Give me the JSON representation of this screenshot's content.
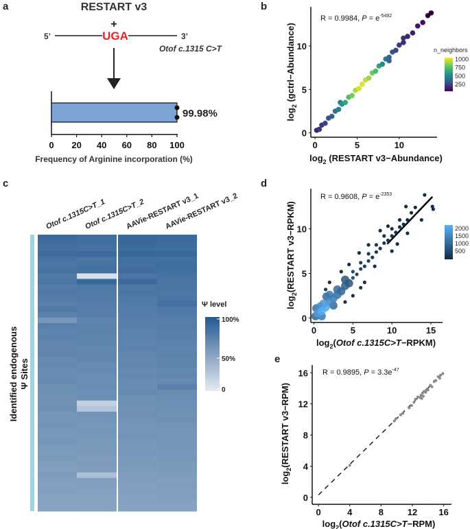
{
  "panel_labels": {
    "a": "a",
    "b": "b",
    "c": "c",
    "d": "d",
    "e": "e"
  },
  "diagram": {
    "title": "RESTART v3",
    "plus": "+",
    "five_prime": "5’",
    "codon": "UGA",
    "three_prime": "3’",
    "mutation": "Otof c.1315 C>T",
    "codon_color": "#e8202a"
  },
  "chart_data": [
    {
      "panel": "a",
      "type": "bar",
      "orientation": "horizontal",
      "values": [
        99.98
      ],
      "replicates": [
        100,
        100
      ],
      "value_label": "99.98%",
      "xlabel": "Frequency of Arginine incorporation (%)",
      "xlim": [
        0,
        100
      ],
      "xticks": [
        "0",
        "20",
        "40",
        "60",
        "80",
        "100"
      ],
      "bar_color": "#7ba3d6"
    },
    {
      "panel": "b",
      "type": "scatter",
      "xlabel": {
        "pre": "log",
        "sub": "2",
        "rest": " (RESTART v3−Abundance)"
      },
      "ylabel": {
        "pre": "log",
        "sub": "2",
        "rest": " (gctrl−Abundance)"
      },
      "annotation": {
        "r": "R = 0.9984, ",
        "p": "P",
        "eq": " = e",
        "exp": "-5492"
      },
      "xlim": [
        -0.5,
        14.5
      ],
      "ylim": [
        -0.5,
        14.5
      ],
      "xticks": [
        "0",
        "5",
        "10"
      ],
      "yticks": [
        "0",
        "5",
        "10"
      ],
      "legend": {
        "title": "n_neighbors",
        "labels": [
          "1000",
          "750",
          "500",
          "250"
        ],
        "colormap": "viridis",
        "range": [
          50,
          1050
        ]
      },
      "points": [
        [
          0.2,
          0.3,
          150
        ],
        [
          0.5,
          0.4,
          200
        ],
        [
          0.8,
          0.9,
          230
        ],
        [
          1.2,
          1.1,
          260
        ],
        [
          1.6,
          1.7,
          300
        ],
        [
          2.0,
          1.9,
          350
        ],
        [
          2.4,
          2.5,
          420
        ],
        [
          2.8,
          2.7,
          480
        ],
        [
          3.0,
          3.5,
          500
        ],
        [
          3.2,
          3.3,
          560
        ],
        [
          3.6,
          3.5,
          640
        ],
        [
          4.0,
          4.1,
          740
        ],
        [
          4.4,
          4.3,
          830
        ],
        [
          4.8,
          4.9,
          920
        ],
        [
          5.2,
          5.1,
          980
        ],
        [
          5.6,
          5.6,
          1000
        ],
        [
          6.0,
          6.1,
          960
        ],
        [
          6.4,
          6.3,
          900
        ],
        [
          6.8,
          6.9,
          820
        ],
        [
          7.2,
          7.1,
          720
        ],
        [
          7.6,
          7.7,
          620
        ],
        [
          8.0,
          7.9,
          520
        ],
        [
          8.4,
          8.5,
          440
        ],
        [
          8.8,
          8.7,
          380
        ],
        [
          8.8,
          8.3,
          380
        ],
        [
          9.2,
          9.3,
          320
        ],
        [
          9.6,
          9.5,
          270
        ],
        [
          10.0,
          10.1,
          230
        ],
        [
          10.5,
          10.4,
          190
        ],
        [
          10.5,
          10.9,
          200
        ],
        [
          11.0,
          11.1,
          160
        ],
        [
          11.6,
          11.5,
          130
        ],
        [
          12.2,
          12.3,
          110
        ],
        [
          12.8,
          12.7,
          90
        ],
        [
          13.4,
          13.5,
          70
        ],
        [
          13.8,
          13.8,
          50
        ]
      ]
    },
    {
      "panel": "c",
      "type": "heatmap",
      "columns": [
        "Otof c.1315C>T_1",
        "Otof c.1315C>T_2",
        "AAVie-RESTART v3_1",
        "AAVie-RESTART v3_2"
      ],
      "ylabel": [
        "Identified endogenous",
        "Ψ Sites"
      ],
      "legend": {
        "title": "Ψ level",
        "labels": [
          "100%",
          "50%",
          "0"
        ]
      },
      "color_low": "#e6eaf2",
      "color_high": "#245990",
      "side_bar_color": "#9fd3de",
      "rows": [
        [
          88,
          86,
          90,
          88
        ],
        [
          86,
          85,
          89,
          87
        ],
        [
          84,
          82,
          87,
          86
        ],
        [
          87,
          88,
          90,
          89
        ],
        [
          82,
          80,
          85,
          84
        ],
        [
          80,
          82,
          84,
          86
        ],
        [
          83,
          84,
          86,
          85
        ],
        [
          78,
          8,
          80,
          82
        ],
        [
          80,
          90,
          88,
          80
        ],
        [
          76,
          78,
          79,
          81
        ],
        [
          78,
          76,
          80,
          79
        ],
        [
          75,
          77,
          78,
          80
        ],
        [
          74,
          75,
          77,
          84
        ],
        [
          77,
          73,
          76,
          78
        ],
        [
          72,
          74,
          75,
          77
        ],
        [
          58,
          70,
          73,
          74
        ],
        [
          73,
          71,
          74,
          76
        ],
        [
          70,
          72,
          71,
          73
        ],
        [
          71,
          69,
          72,
          74
        ],
        [
          69,
          70,
          70,
          72
        ],
        [
          68,
          67,
          71,
          70
        ],
        [
          70,
          68,
          69,
          71
        ],
        [
          66,
          68,
          67,
          69
        ],
        [
          67,
          65,
          68,
          70
        ],
        [
          65,
          66,
          66,
          67
        ],
        [
          64,
          64,
          67,
          68
        ],
        [
          66,
          63,
          65,
          66
        ],
        [
          62,
          65,
          64,
          73
        ],
        [
          63,
          62,
          66,
          65
        ],
        [
          61,
          63,
          62,
          64
        ],
        [
          60,
          18,
          63,
          62
        ],
        [
          62,
          25,
          61,
          63
        ],
        [
          59,
          60,
          62,
          61
        ],
        [
          58,
          59,
          60,
          62
        ],
        [
          60,
          57,
          59,
          60
        ],
        [
          57,
          58,
          58,
          59
        ],
        [
          56,
          57,
          60,
          58
        ],
        [
          58,
          55,
          57,
          59
        ],
        [
          55,
          56,
          56,
          57
        ],
        [
          54,
          55,
          57,
          56
        ],
        [
          56,
          53,
          55,
          57
        ],
        [
          53,
          54,
          56,
          55
        ],
        [
          52,
          53,
          54,
          55
        ],
        [
          54,
          30,
          53,
          54
        ],
        [
          51,
          52,
          53,
          52
        ],
        [
          50,
          51,
          52,
          53
        ],
        [
          52,
          50,
          51,
          51
        ],
        [
          49,
          50,
          50,
          52
        ],
        [
          50,
          48,
          51,
          50
        ],
        [
          48,
          49,
          49,
          50
        ]
      ]
    },
    {
      "panel": "d",
      "type": "scatter",
      "xlabel": {
        "pre": "log",
        "sub": "2",
        "open": "(",
        "italic": "Otof c.1315C>T",
        "rest": "−RPKM)"
      },
      "ylabel": {
        "pre": "log",
        "sub": "2",
        "rest": "(RESTART v3−RPKM)"
      },
      "annotation": {
        "r": "R = 0.9608, ",
        "p": "P",
        "eq": " = e",
        "exp": "-2353"
      },
      "xlim": [
        -0.4,
        16.5
      ],
      "ylim": [
        -0.5,
        14.5
      ],
      "xticks": [
        "0",
        "5",
        "10",
        "15"
      ],
      "yticks": [
        "0",
        "5",
        "10"
      ],
      "legend": {
        "labels": [
          "2000",
          "1500",
          "1000",
          "500"
        ],
        "color_low": "#132b43",
        "color_high": "#56b1f7",
        "range": [
          0,
          2100
        ]
      },
      "fit_line": [
        [
          9.4,
          8.3
        ],
        [
          15.2,
          13.6
        ]
      ],
      "points": [
        [
          0.2,
          0.2,
          900
        ],
        [
          0.5,
          0.5,
          1800
        ],
        [
          1,
          0.8,
          2000
        ],
        [
          1.5,
          1.2,
          1900
        ],
        [
          1.2,
          1.6,
          1700
        ],
        [
          0.8,
          1.3,
          1600
        ],
        [
          2,
          1.8,
          1500
        ],
        [
          2.5,
          2.2,
          1300
        ],
        [
          2,
          2.6,
          1200
        ],
        [
          3,
          2.6,
          1100
        ],
        [
          3,
          3.2,
          1000
        ],
        [
          3.5,
          3,
          900
        ],
        [
          1,
          0.2,
          1200
        ],
        [
          0.3,
          1.1,
          1100
        ],
        [
          2.5,
          1.4,
          1000
        ],
        [
          1.6,
          2.4,
          1000
        ],
        [
          4,
          3.6,
          800
        ],
        [
          4,
          4.3,
          700
        ],
        [
          4.5,
          3.9,
          650
        ],
        [
          5,
          4.5,
          600
        ],
        [
          5,
          5.2,
          500
        ],
        [
          5.5,
          4.9,
          450
        ],
        [
          6,
          5.5,
          400
        ],
        [
          6,
          6.2,
          350
        ],
        [
          6.5,
          5.8,
          320
        ],
        [
          7,
          6.4,
          300
        ],
        [
          7,
          7.2,
          260
        ],
        [
          7.5,
          6.8,
          240
        ],
        [
          8,
          7.4,
          220
        ],
        [
          8,
          8.2,
          200
        ],
        [
          8.5,
          7.8,
          180
        ],
        [
          9,
          8.4,
          160
        ],
        [
          9,
          9.2,
          150
        ],
        [
          9.5,
          8.7,
          130
        ],
        [
          10,
          9.2,
          120
        ],
        [
          10,
          10,
          110
        ],
        [
          10.5,
          9.6,
          100
        ],
        [
          11,
          10.2,
          90
        ],
        [
          11,
          11,
          80
        ],
        [
          11.5,
          10.5,
          70
        ],
        [
          12,
          11,
          60
        ],
        [
          12.5,
          11.8,
          50
        ],
        [
          13,
          12.4,
          40
        ],
        [
          14.2,
          13.8,
          20
        ],
        [
          15.2,
          12.5,
          20
        ],
        [
          15.3,
          12.2,
          20
        ],
        [
          13.8,
          11,
          20
        ],
        [
          11.8,
          12.5,
          20
        ],
        [
          3.5,
          5.2,
          100
        ],
        [
          4.5,
          6,
          80
        ],
        [
          5,
          2.5,
          100
        ],
        [
          6.5,
          4,
          90
        ],
        [
          8.5,
          9.8,
          60
        ],
        [
          9.5,
          10.3,
          50
        ],
        [
          10.7,
          8.3,
          50
        ],
        [
          7,
          8.2,
          60
        ],
        [
          2,
          4,
          120
        ],
        [
          6,
          3.4,
          80
        ],
        [
          12,
          9.5,
          40
        ],
        [
          10,
          7.5,
          50
        ],
        [
          4,
          1.8,
          150
        ],
        [
          1.5,
          3.2,
          300
        ],
        [
          5.8,
          7.3,
          70
        ],
        [
          7.8,
          5.8,
          80
        ]
      ]
    },
    {
      "panel": "e",
      "type": "scatter",
      "xlabel": {
        "pre": "log",
        "sub": "2",
        "open": "(",
        "italic": "Otof c.1315C>T",
        "rest": "−RPM)"
      },
      "ylabel": {
        "pre": "log",
        "sub": "2",
        "rest": "(RESTART v3−RPM)"
      },
      "annotation": {
        "r": "R = 0.9895, ",
        "p": "P",
        "eq": " = 3.3e",
        "exp": "-47"
      },
      "xlim": [
        -0.8,
        17
      ],
      "ylim": [
        -0.9,
        17
      ],
      "xticks": [
        "0",
        "4",
        "8",
        "12",
        "16"
      ],
      "yticks": [
        "0",
        "4",
        "8",
        "12",
        "16"
      ],
      "reference_line": [
        [
          0,
          0.3
        ],
        [
          16,
          16
        ]
      ],
      "point_color": "#888888",
      "points": [
        [
          4.0,
          4.1
        ],
        [
          9.7,
          9.8
        ],
        [
          9.9,
          10.1
        ],
        [
          10.5,
          10.6
        ],
        [
          10.8,
          10.8
        ],
        [
          11.6,
          11.5
        ],
        [
          11.9,
          11.8
        ],
        [
          12.2,
          12.2
        ],
        [
          12.4,
          12.6
        ],
        [
          12.7,
          12.9
        ],
        [
          13.0,
          12.8
        ],
        [
          13.1,
          13.1
        ],
        [
          13.2,
          12.7
        ],
        [
          13.3,
          13.4
        ],
        [
          13.4,
          13.0
        ],
        [
          13.5,
          13.6
        ],
        [
          13.7,
          13.5
        ],
        [
          13.8,
          13.8
        ],
        [
          13.9,
          13.9
        ],
        [
          14.0,
          13.8
        ],
        [
          14.3,
          14.4
        ],
        [
          14.5,
          14.2
        ],
        [
          14.8,
          14.9
        ],
        [
          15.0,
          15.0
        ],
        [
          15.3,
          15.5
        ],
        [
          15.5,
          15.3
        ],
        [
          15.6,
          15.7
        ],
        [
          15.9,
          15.9
        ]
      ]
    }
  ]
}
